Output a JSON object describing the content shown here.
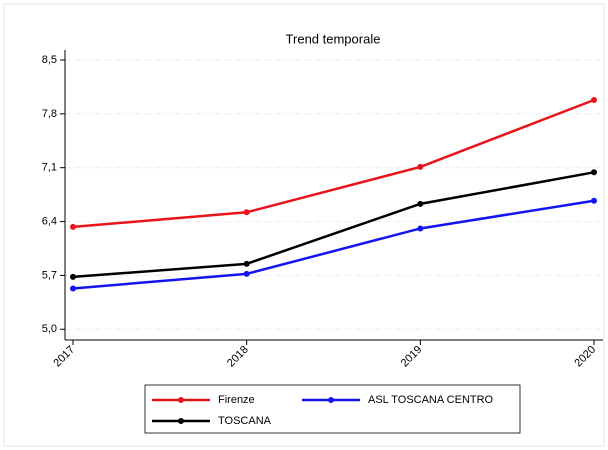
{
  "chart_data": {
    "type": "line",
    "title": "Trend temporale",
    "categories": [
      "2017",
      "2018",
      "2019",
      "2020"
    ],
    "series": [
      {
        "name": "Firenze",
        "color": "#e8141b",
        "values": [
          6.33,
          6.52,
          7.11,
          7.98
        ]
      },
      {
        "name": "ASL TOSCANA CENTRO",
        "color": "#1414f0",
        "values": [
          5.53,
          5.72,
          6.31,
          6.67
        ]
      },
      {
        "name": "TOSCANA",
        "color": "#000000",
        "values": [
          5.68,
          5.85,
          6.63,
          7.04
        ]
      }
    ],
    "ylim": [
      4.86,
      8.63
    ],
    "yticks": [
      {
        "value": 5.0,
        "label": "5,0"
      },
      {
        "value": 5.7,
        "label": "5,7"
      },
      {
        "value": 6.4,
        "label": "6,4"
      },
      {
        "value": 7.1,
        "label": "7,1"
      },
      {
        "value": 7.8,
        "label": "7,8"
      },
      {
        "value": 8.5,
        "label": "8,5"
      }
    ],
    "grid": true
  }
}
